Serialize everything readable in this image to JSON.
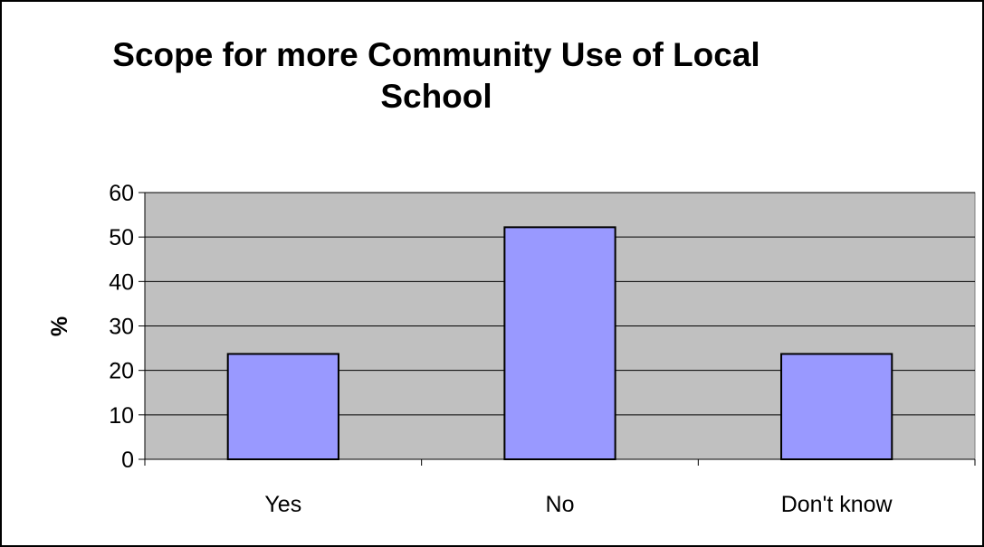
{
  "chart_data": {
    "type": "bar",
    "title_lines": [
      "Scope for more Community Use of Local",
      "School"
    ],
    "xlabel": "",
    "ylabel": "%",
    "categories": [
      "Yes",
      "No",
      "Don't know"
    ],
    "values": [
      23.7,
      52.2,
      23.7
    ],
    "ylim": [
      0,
      60
    ],
    "yticks": [
      0,
      10,
      20,
      30,
      40,
      50,
      60
    ],
    "grid": true,
    "legend": "none",
    "colors": {
      "bar_fill": "#9999FF",
      "plot_background": "#C0C0C0",
      "gridline": "#000000",
      "axis": "#000000"
    }
  }
}
